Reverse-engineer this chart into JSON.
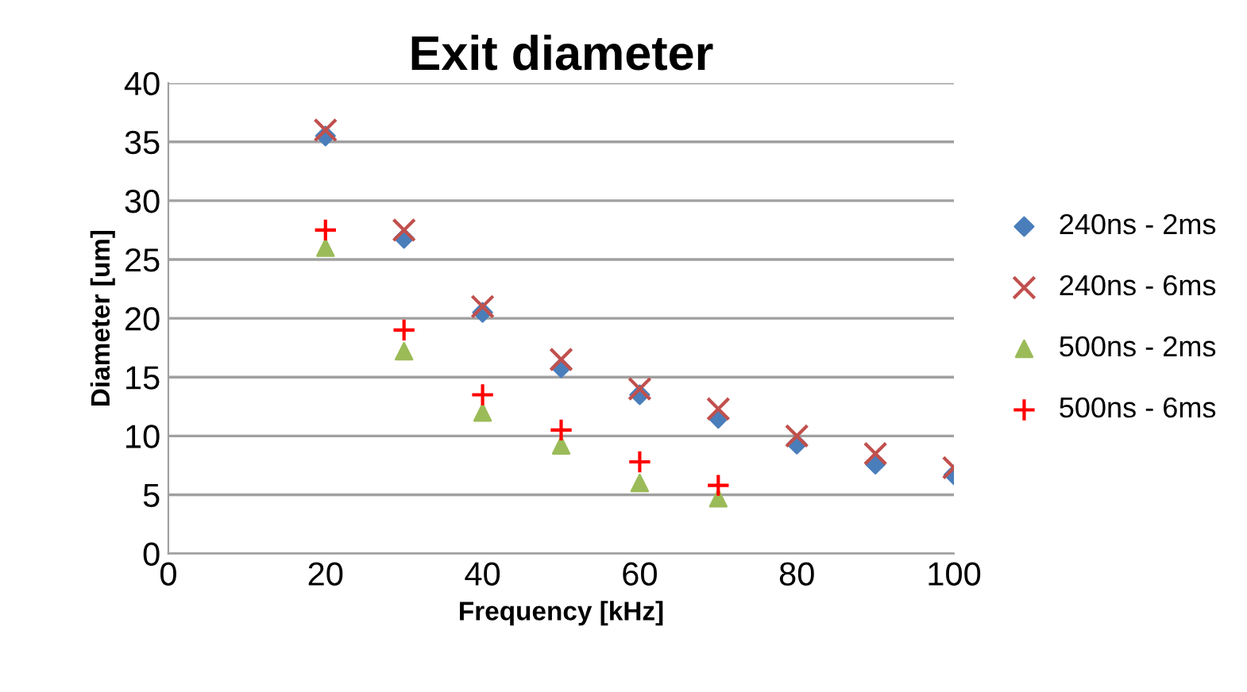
{
  "chart_data": {
    "type": "scatter",
    "title": "Exit diameter",
    "xlabel": "Frequency [kHz]",
    "ylabel": "Diameter [um]",
    "xlim": [
      0,
      100
    ],
    "xticks": [
      0,
      20,
      40,
      60,
      80,
      100
    ],
    "ylim": [
      0,
      40
    ],
    "yticks": [
      0,
      5,
      10,
      15,
      20,
      25,
      30,
      35,
      40
    ],
    "grid": "y",
    "legend": "right",
    "series": [
      {
        "name": "240ns - 2ms",
        "color": "#4a7ebb",
        "marker": "diamond",
        "x": [
          20,
          30,
          40,
          50,
          60,
          70,
          80,
          90,
          100
        ],
        "values": [
          35.5,
          26.8,
          20.5,
          15.8,
          13.5,
          11.5,
          9.3,
          7.6,
          6.7
        ]
      },
      {
        "name": "240ns - 6ms",
        "color": "#c0504d",
        "marker": "cross",
        "x": [
          20,
          30,
          40,
          50,
          60,
          70,
          80,
          90,
          100
        ],
        "values": [
          36,
          27.5,
          21,
          16.5,
          14,
          12.3,
          10,
          8.5,
          7.3
        ]
      },
      {
        "name": "500ns - 2ms",
        "color": "#9bbb59",
        "marker": "triangle",
        "x": [
          20,
          30,
          40,
          50,
          60,
          70
        ],
        "values": [
          26,
          17.2,
          12,
          9.2,
          6,
          4.7
        ]
      },
      {
        "name": "500ns - 6ms",
        "color": "#ff0000",
        "marker": "plus",
        "x": [
          20,
          30,
          40,
          50,
          60,
          70
        ],
        "values": [
          27.5,
          19,
          13.5,
          10.5,
          7.8,
          5.8
        ]
      }
    ]
  }
}
